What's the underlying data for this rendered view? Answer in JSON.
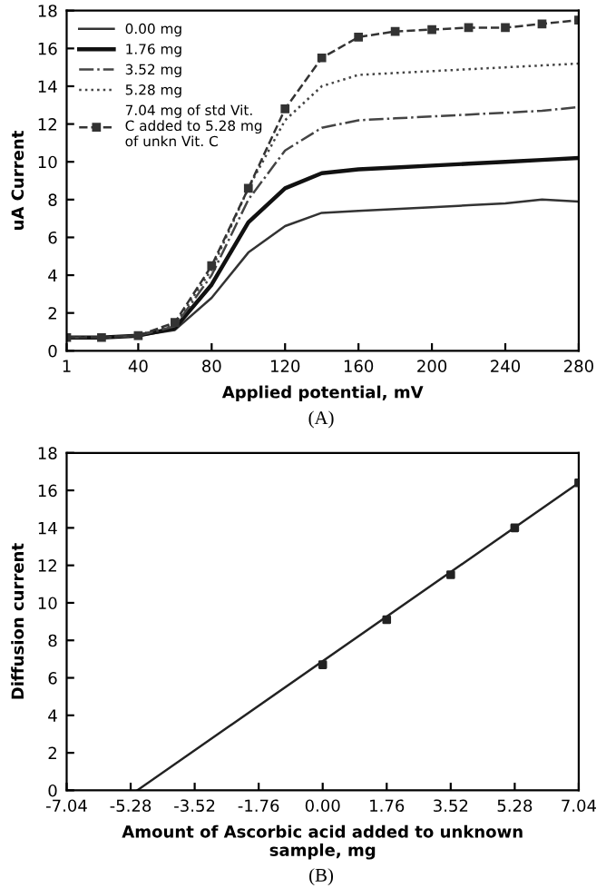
{
  "chart_data": [
    {
      "type": "line",
      "xlabel": "Applied potential, mV",
      "ylabel": "uA Current",
      "annotations": [
        "(A)"
      ],
      "x": [
        1,
        20,
        40,
        60,
        80,
        100,
        120,
        140,
        160,
        180,
        200,
        220,
        240,
        260,
        280
      ],
      "xlim": [
        1,
        280
      ],
      "xticks": [
        1,
        40,
        80,
        120,
        160,
        200,
        240,
        280
      ],
      "ylim": [
        0,
        18
      ],
      "yticks": [
        0,
        2,
        4,
        6,
        8,
        10,
        12,
        14,
        16,
        18
      ],
      "grid": false,
      "legend": "top left",
      "series": [
        {
          "name": "0.00 mg",
          "color": "#333333",
          "line_style": "solid",
          "marker": "none",
          "values": [
            0.7,
            0.7,
            0.8,
            1.1,
            2.8,
            5.2,
            6.6,
            7.3,
            7.4,
            7.5,
            7.6,
            7.7,
            7.8,
            8.0,
            7.9
          ]
        },
        {
          "name": "1.76 mg",
          "color": "#111111",
          "line_style": "solid",
          "marker": "none",
          "values": [
            0.7,
            0.7,
            0.8,
            1.2,
            3.5,
            6.8,
            8.6,
            9.4,
            9.6,
            9.7,
            9.8,
            9.9,
            10.0,
            10.1,
            10.2
          ]
        },
        {
          "name": "3.52 mg",
          "color": "#444444",
          "line_style": "dashdot",
          "marker": "none",
          "values": [
            0.7,
            0.7,
            0.8,
            1.3,
            4.0,
            8.0,
            10.6,
            11.8,
            12.2,
            12.3,
            12.4,
            12.5,
            12.6,
            12.7,
            12.9
          ]
        },
        {
          "name": "5.28 mg",
          "color": "#444444",
          "line_style": "dotted",
          "marker": "none",
          "values": [
            0.7,
            0.7,
            0.8,
            1.4,
            4.3,
            8.6,
            12.2,
            14.0,
            14.6,
            14.7,
            14.8,
            14.9,
            15.0,
            15.1,
            15.2
          ]
        },
        {
          "name": "7.04 mg of std Vit.\nC added to 5.28 mg\nof unkn Vit. C",
          "color": "#333333",
          "line_style": "dashed",
          "marker": "square",
          "values": [
            0.7,
            0.7,
            0.8,
            1.5,
            4.5,
            8.6,
            12.8,
            15.5,
            16.6,
            16.9,
            17.0,
            17.1,
            17.1,
            17.3,
            17.5
          ]
        }
      ]
    },
    {
      "type": "line",
      "xlabel": "Amount of Ascorbic acid added to unknown\nsample, mg",
      "ylabel": "Diffusion current",
      "annotations": [
        "(B)"
      ],
      "xlim": [
        -7.04,
        7.04
      ],
      "xticks": [
        -7.04,
        -5.28,
        -3.52,
        -1.76,
        {
          "value": 0,
          "label": "0.00"
        },
        1.76,
        3.52,
        5.28,
        7.04
      ],
      "ylim": [
        0,
        18
      ],
      "yticks": [
        0,
        2,
        4,
        6,
        8,
        10,
        12,
        14,
        16,
        18
      ],
      "grid": false,
      "legend": false,
      "series": [
        {
          "type": "line",
          "color": "#222222",
          "line_style": "solid",
          "marker": "none",
          "x": [
            -5.1,
            7.04
          ],
          "values": [
            0,
            16.4
          ]
        },
        {
          "type": "scatter",
          "color": "#222222",
          "marker": "square",
          "x": [
            0,
            1.76,
            3.52,
            5.28,
            7.04
          ],
          "values": [
            6.7,
            9.1,
            11.5,
            14.0,
            16.4
          ]
        }
      ]
    }
  ]
}
